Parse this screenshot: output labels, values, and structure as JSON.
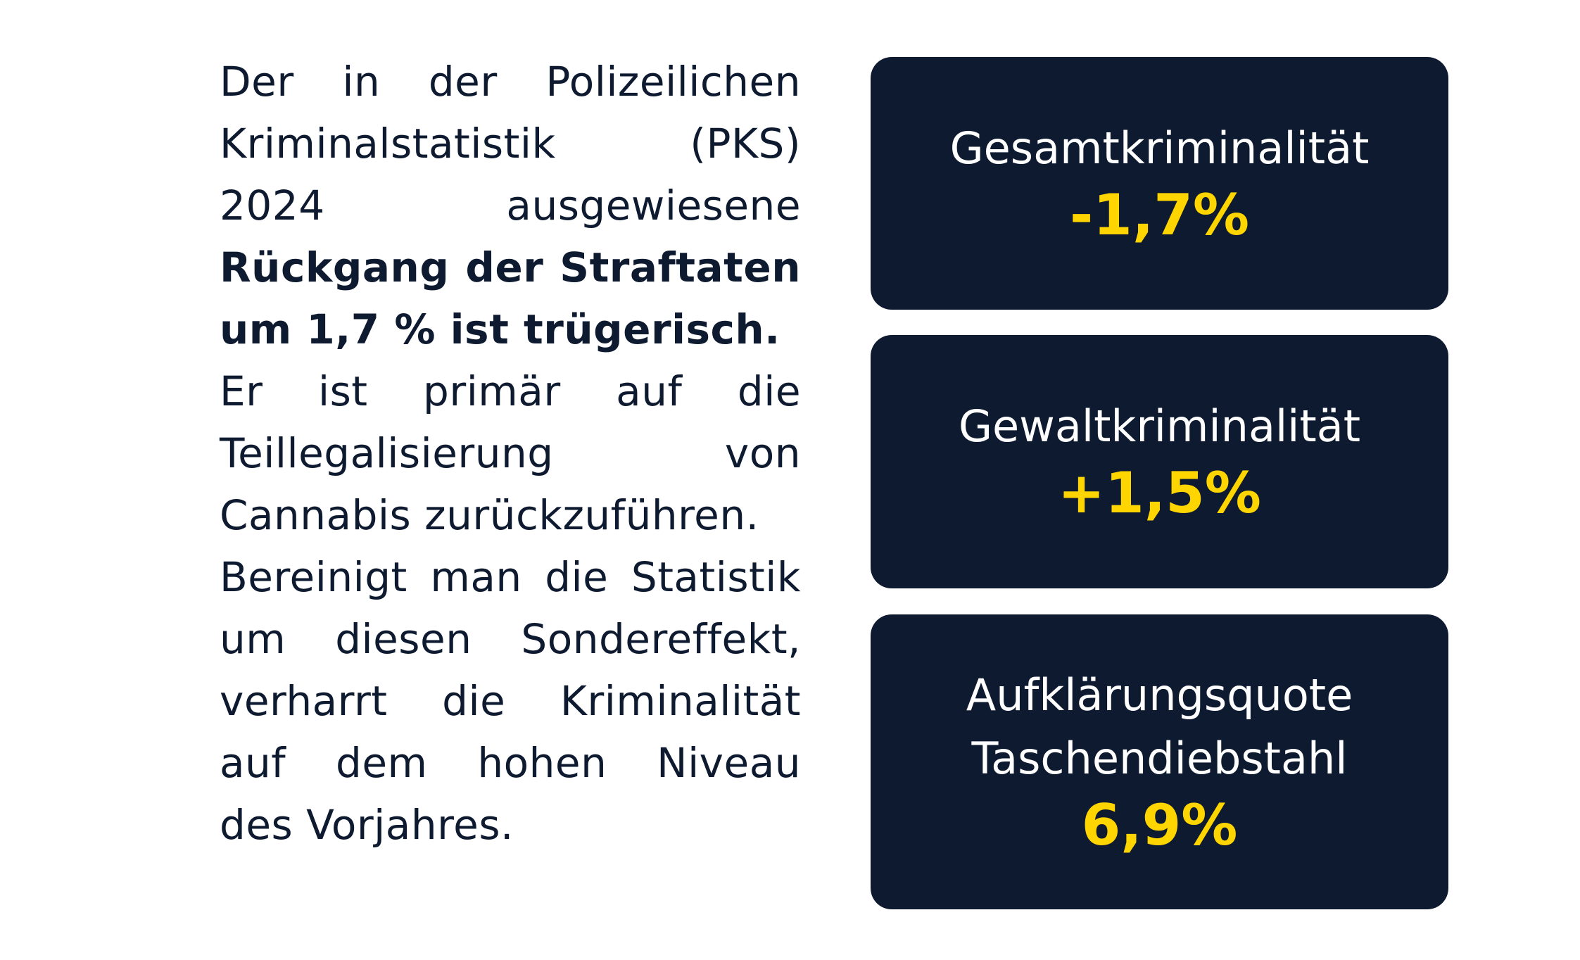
{
  "paragraph": {
    "lines": [
      {
        "text": "Der in der Polizeilichen",
        "bold": false,
        "justify": true
      },
      {
        "text": "Kriminalstatistik (PKS)",
        "bold": false,
        "justify": true
      },
      {
        "text": "2024 ausgewiesene",
        "bold": false,
        "justify": true
      },
      {
        "text": "Rückgang der Straftaten",
        "bold": true,
        "justify": true
      },
      {
        "text": "um 1,7 % ist trügerisch.",
        "bold": true,
        "justify": false
      },
      {
        "text": "Er ist primär auf die",
        "bold": false,
        "justify": true
      },
      {
        "text": "Teillegalisierung von",
        "bold": false,
        "justify": true
      },
      {
        "text": "Cannabis zurückzuführen.",
        "bold": false,
        "justify": false
      },
      {
        "text": "Bereinigt man die Statistik",
        "bold": false,
        "justify": true
      },
      {
        "text": "um diesen Sondereffekt,",
        "bold": false,
        "justify": true
      },
      {
        "text": "verharrt die Kriminalität",
        "bold": false,
        "justify": true
      },
      {
        "text": "auf dem hohen Niveau",
        "bold": false,
        "justify": true
      },
      {
        "text": "des Vorjahres.",
        "bold": false,
        "justify": false
      }
    ]
  },
  "cards": [
    {
      "title_lines": [
        "Gesamtkriminalität"
      ],
      "value": "-1,7%"
    },
    {
      "title_lines": [
        "Gewaltkriminalität"
      ],
      "value": "+1,5%"
    },
    {
      "title_lines": [
        "Aufklärungsquote",
        "Taschendiebstahl"
      ],
      "value": "6,9%"
    }
  ],
  "colors": {
    "card_bg": "#0d1a30",
    "value": "#ffd500",
    "text": "#0d1a30"
  }
}
